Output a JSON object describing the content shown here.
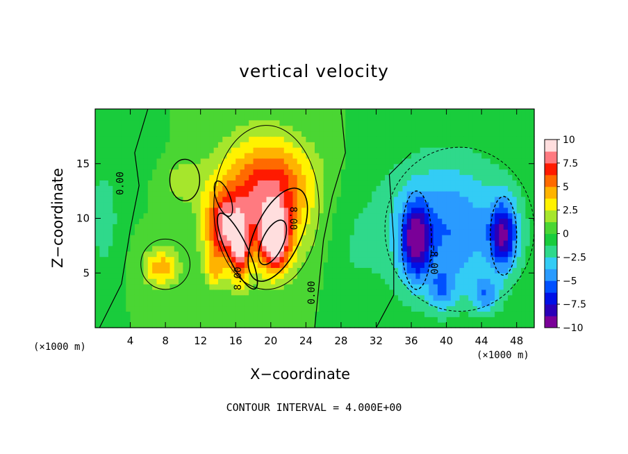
{
  "chart_data": {
    "type": "heatmap",
    "title": "vertical velocity",
    "xlabel": "X−coordinate",
    "ylabel": "Z−coordinate",
    "x_unit_left": "(×1000 m)",
    "x_unit_right": "(×1000 m)",
    "x_ticks": [
      "4",
      "8",
      "12",
      "16",
      "20",
      "24",
      "28",
      "32",
      "36",
      "40",
      "44",
      "48"
    ],
    "y_ticks": [
      "5",
      "10",
      "15"
    ],
    "xlim": [
      0,
      50
    ],
    "ylim": [
      0,
      20
    ],
    "colorbar": {
      "ticks": [
        "10",
        "7.5",
        "5",
        "2.5",
        "0",
        "−2.5",
        "−5",
        "−7.5",
        "−10"
      ],
      "range": [
        -10,
        10
      ],
      "colors": [
        "#7a0098",
        "#2a00b8",
        "#0010e6",
        "#0050ff",
        "#2a9bff",
        "#33ccf5",
        "#2fd98b",
        "#19cc3c",
        "#4ad633",
        "#a6e62c",
        "#fff200",
        "#ffb300",
        "#ff6a00",
        "#ff1a00",
        "#ff7a80",
        "#ffdede"
      ]
    },
    "contour_labels": [
      "0.00",
      "0.00",
      "8.00",
      "8.00",
      "−8.00"
    ],
    "contour_interval": "4.000E+00",
    "field_blobs": [
      {
        "x": 19.0,
        "z": 11.5,
        "sx": 5.2,
        "sz": 5.5,
        "amp": 7.5
      },
      {
        "x": 14.5,
        "z": 9.0,
        "sx": 2.0,
        "sz": 3.2,
        "amp": 6.0
      },
      {
        "x": 20.5,
        "z": 8.0,
        "sx": 1.6,
        "sz": 2.8,
        "amp": 8.0
      },
      {
        "x": 16.5,
        "z": 7.0,
        "sx": 1.0,
        "sz": 3.0,
        "amp": 5.5
      },
      {
        "x": 7.5,
        "z": 5.5,
        "sx": 2.0,
        "sz": 1.8,
        "amp": 4.5
      },
      {
        "x": 13.5,
        "z": 5.0,
        "sx": 1.0,
        "sz": 1.5,
        "amp": 2.5
      },
      {
        "x": 10.0,
        "z": 13.5,
        "sx": 2.5,
        "sz": 2.0,
        "amp": 1.8
      },
      {
        "x": 22.0,
        "z": 14.0,
        "sx": 4.0,
        "sz": 3.0,
        "amp": 1.5
      },
      {
        "x": 40.0,
        "z": 9.0,
        "sx": 7.5,
        "sz": 6.5,
        "amp": -5.0
      },
      {
        "x": 36.5,
        "z": 8.0,
        "sx": 1.5,
        "sz": 3.2,
        "amp": -7.0
      },
      {
        "x": 46.5,
        "z": 8.5,
        "sx": 1.5,
        "sz": 3.0,
        "amp": -7.0
      },
      {
        "x": 44.5,
        "z": 3.0,
        "sx": 1.5,
        "sz": 1.6,
        "amp": -3.5
      },
      {
        "x": 39.5,
        "z": 3.5,
        "sx": 1.5,
        "sz": 1.8,
        "amp": -3.0
      },
      {
        "x": 1.0,
        "z": 10.0,
        "sx": 1.5,
        "sz": 4.0,
        "amp": -2.5
      },
      {
        "x": 29.0,
        "z": 7.0,
        "sx": 2.5,
        "sz": 6.0,
        "amp": -0.8
      },
      {
        "x": 4.0,
        "z": 16.0,
        "sx": 3.0,
        "sz": 3.0,
        "amp": -0.8
      }
    ],
    "grid": false
  }
}
